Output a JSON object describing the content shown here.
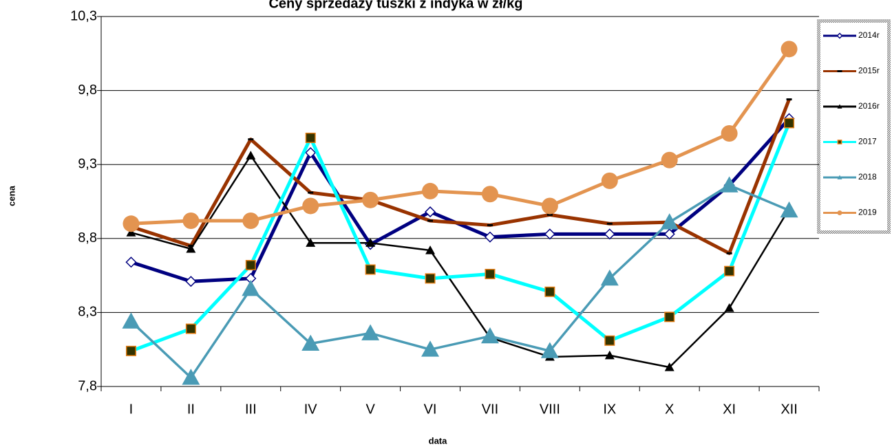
{
  "chart_data": {
    "type": "line",
    "title": "Ceny sprzedaży tuszki z indyka w zł/kg",
    "x_label": "data",
    "y_label": "cena",
    "categories": [
      "I",
      "II",
      "III",
      "IV",
      "V",
      "VI",
      "VII",
      "VIII",
      "IX",
      "X",
      "XI",
      "XII"
    ],
    "ylim": [
      7.8,
      10.3
    ],
    "yticks": [
      {
        "value": 7.8,
        "label": "7,8"
      },
      {
        "value": 8.3,
        "label": "8,3"
      },
      {
        "value": 8.8,
        "label": "8,8"
      },
      {
        "value": 9.3,
        "label": "9,3"
      },
      {
        "value": 9.8,
        "label": "9,8"
      },
      {
        "value": 10.3,
        "label": "10,3"
      }
    ],
    "grid": true,
    "legend": "right",
    "series": [
      {
        "name": "2014r",
        "color": "#000080",
        "marker": "diamond",
        "values": [
          8.64,
          8.51,
          8.53,
          9.38,
          8.76,
          8.98,
          8.81,
          8.83,
          8.83,
          8.83,
          9.16,
          9.61
        ]
      },
      {
        "name": "2015r",
        "color": "#993300",
        "marker": "dash",
        "values": [
          8.88,
          8.75,
          9.47,
          9.11,
          9.06,
          8.92,
          8.89,
          8.96,
          8.9,
          8.91,
          8.7,
          9.74
        ]
      },
      {
        "name": "2016r",
        "color": "#000000",
        "marker": "triangle",
        "values": [
          8.84,
          8.73,
          9.36,
          8.77,
          8.77,
          8.72,
          8.13,
          8.0,
          8.01,
          7.93,
          8.33,
          9.0
        ]
      },
      {
        "name": "2017",
        "color": "#00ffff",
        "marker": "square",
        "values": [
          8.04,
          8.19,
          8.62,
          9.48,
          8.59,
          8.53,
          8.56,
          8.44,
          8.11,
          8.27,
          8.58,
          9.58
        ]
      },
      {
        "name": "2018",
        "color": "#4a9bb5",
        "marker": "triangle",
        "values": [
          8.24,
          7.86,
          8.46,
          8.09,
          8.16,
          8.05,
          8.14,
          8.04,
          8.53,
          8.91,
          9.16,
          8.99
        ]
      },
      {
        "name": "2019",
        "color": "#e39450",
        "marker": "circle",
        "values": [
          8.9,
          8.92,
          8.92,
          9.02,
          9.06,
          9.12,
          9.1,
          9.02,
          9.19,
          9.33,
          9.51,
          10.08
        ]
      }
    ]
  }
}
